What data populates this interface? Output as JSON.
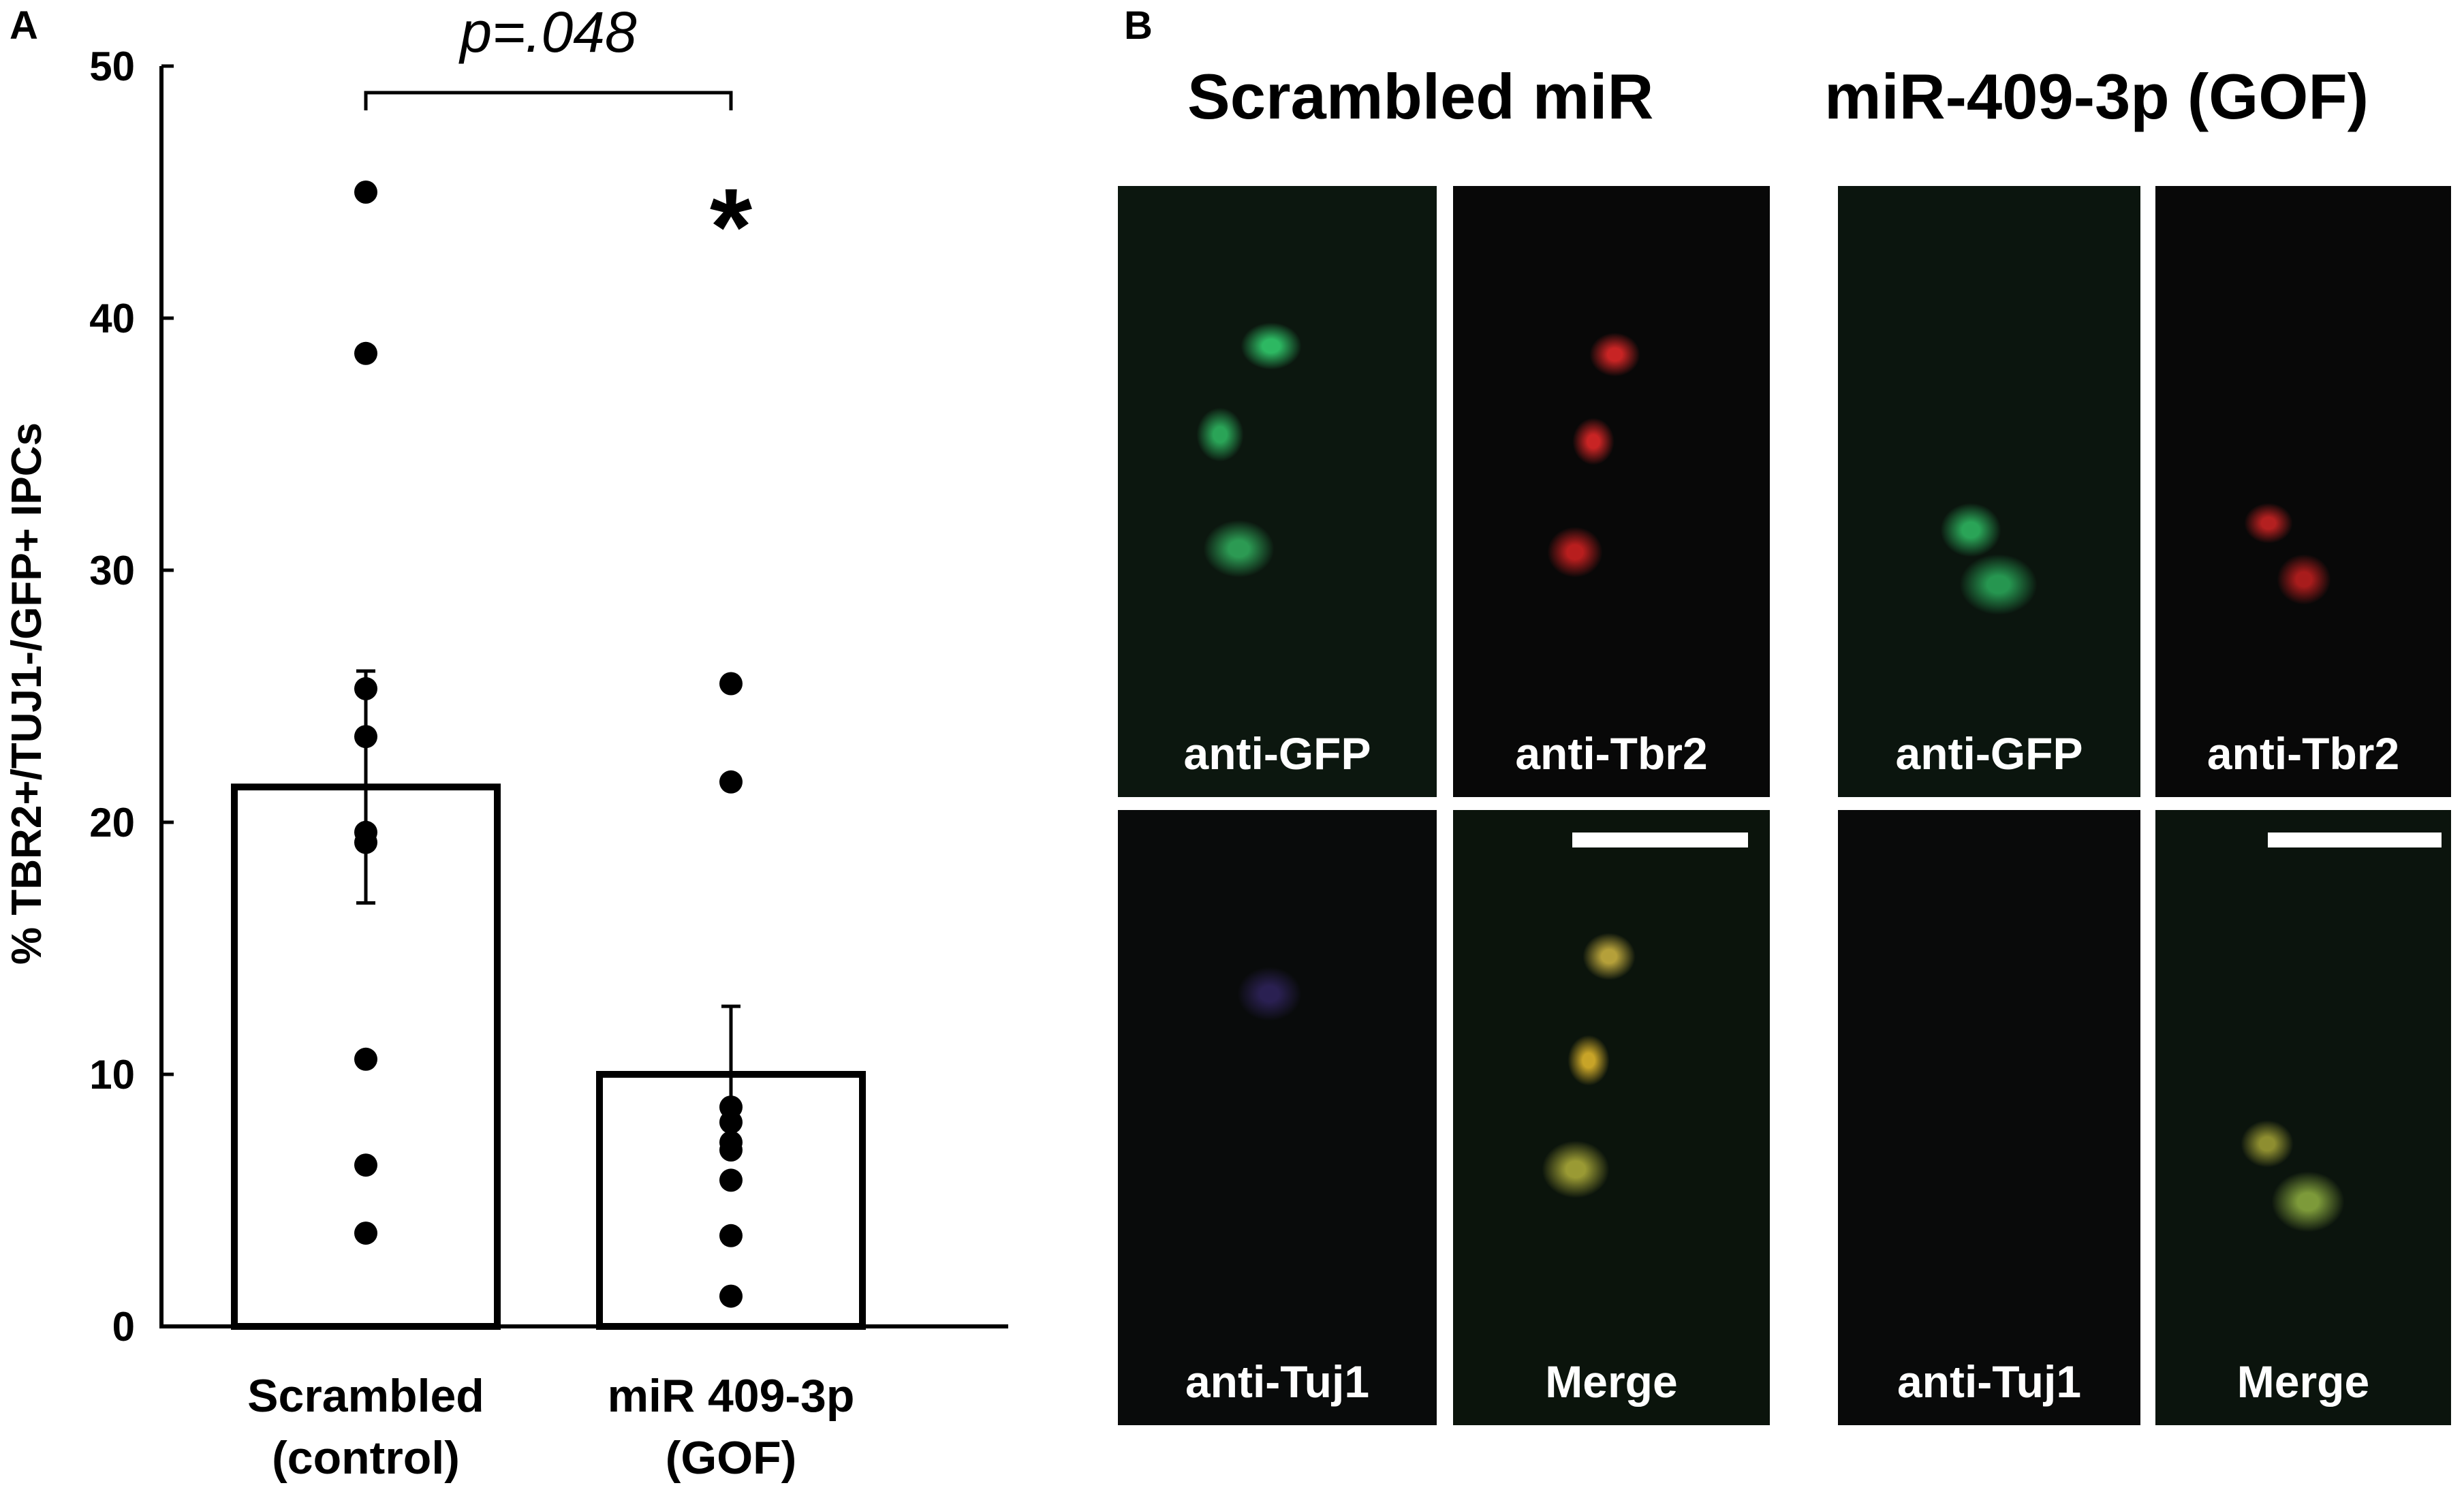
{
  "panel_a": {
    "letter": "A"
  },
  "panel_b": {
    "letter": "B",
    "conditions": [
      {
        "title": "Scrambled miR",
        "tiles": [
          {
            "label": "anti-GFP"
          },
          {
            "label": "anti-Tbr2"
          },
          {
            "label": "anti-Tuj1"
          },
          {
            "label": "Merge"
          }
        ]
      },
      {
        "title": "miR-409-3p (GOF)",
        "tiles": [
          {
            "label": "anti-GFP"
          },
          {
            "label": "anti-Tbr2"
          },
          {
            "label": "anti-Tuj1"
          },
          {
            "label": "Merge"
          }
        ]
      }
    ]
  },
  "chart_data": {
    "type": "bar",
    "ylabel": "% TBR2+/TUJ1-/GFP+ IPCs",
    "ylim": [
      0,
      50
    ],
    "yticks": [
      0,
      10,
      20,
      30,
      40,
      50
    ],
    "categories": [
      {
        "line1": "Scrambled",
        "line2": "(control)"
      },
      {
        "line1": "miR 409-3p",
        "line2": "(GOF)"
      }
    ],
    "values": [
      21.4,
      10.0
    ],
    "error": [
      4.6,
      2.7
    ],
    "points": [
      [
        45.0,
        38.6,
        25.3,
        23.4,
        19.6,
        19.2,
        10.6,
        6.4,
        3.7
      ],
      [
        25.5,
        21.6,
        8.7,
        8.1,
        7.3,
        7.0,
        5.8,
        3.6,
        1.2
      ]
    ],
    "bracket_label": "p=.048",
    "significance_marker": "*",
    "colors": {
      "bar_fill": "#ffffff",
      "bar_stroke": "#000000",
      "points": "#000000"
    }
  }
}
